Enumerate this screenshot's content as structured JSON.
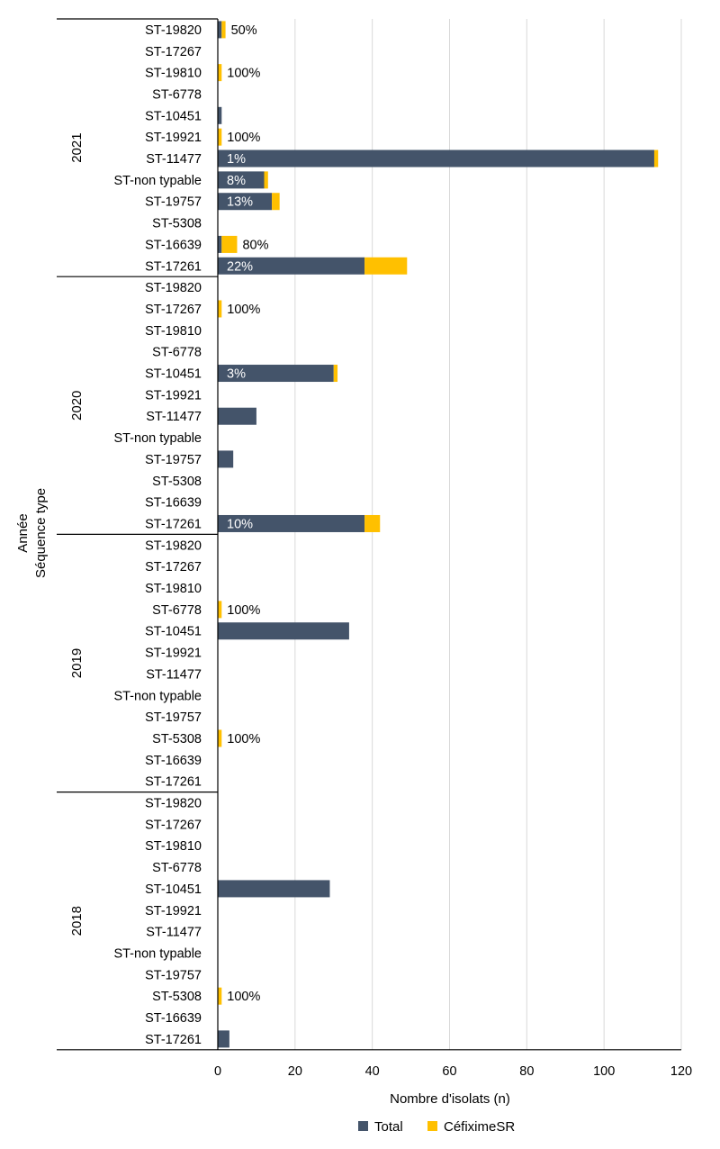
{
  "chart_data": {
    "type": "bar",
    "stacked": true,
    "orientation": "horizontal",
    "title": "",
    "xlabel": "Nombre d'isolats (n)",
    "ylabel": [
      "Année",
      "Séquence type"
    ],
    "xlim": [
      0,
      120
    ],
    "xticks": [
      "0",
      "20",
      "40",
      "60",
      "80",
      "100",
      "120"
    ],
    "grid": "vertical",
    "legend_position": "bottom",
    "colors": {
      "total": "#44546a",
      "cefixime": "#ffc000"
    },
    "series_names": [
      "Total",
      "CéfiximeSR"
    ],
    "groups": [
      {
        "year": "2021",
        "rows": [
          {
            "st": "ST-19820",
            "total": 1,
            "cef": 1,
            "label": "50%"
          },
          {
            "st": "ST-17267",
            "total": 0,
            "cef": 0,
            "label": ""
          },
          {
            "st": "ST-19810",
            "total": 0,
            "cef": 1,
            "label": "100%"
          },
          {
            "st": "ST-6778",
            "total": 0,
            "cef": 0,
            "label": ""
          },
          {
            "st": "ST-10451",
            "total": 1,
            "cef": 0,
            "label": ""
          },
          {
            "st": "ST-19921",
            "total": 0,
            "cef": 1,
            "label": "100%"
          },
          {
            "st": "ST-11477",
            "total": 113,
            "cef": 1,
            "label": "1%"
          },
          {
            "st": "ST-non typable",
            "total": 12,
            "cef": 1,
            "label": "8%"
          },
          {
            "st": "ST-19757",
            "total": 14,
            "cef": 2,
            "label": "13%"
          },
          {
            "st": "ST-5308",
            "total": 0,
            "cef": 0,
            "label": ""
          },
          {
            "st": "ST-16639",
            "total": 1,
            "cef": 4,
            "label": "80%"
          },
          {
            "st": "ST-17261",
            "total": 38,
            "cef": 11,
            "label": "22%"
          }
        ]
      },
      {
        "year": "2020",
        "rows": [
          {
            "st": "ST-19820",
            "total": 0,
            "cef": 0,
            "label": ""
          },
          {
            "st": "ST-17267",
            "total": 0,
            "cef": 1,
            "label": "100%"
          },
          {
            "st": "ST-19810",
            "total": 0,
            "cef": 0,
            "label": ""
          },
          {
            "st": "ST-6778",
            "total": 0,
            "cef": 0,
            "label": ""
          },
          {
            "st": "ST-10451",
            "total": 30,
            "cef": 1,
            "label": "3%"
          },
          {
            "st": "ST-19921",
            "total": 0,
            "cef": 0,
            "label": ""
          },
          {
            "st": "ST-11477",
            "total": 10,
            "cef": 0,
            "label": ""
          },
          {
            "st": "ST-non typable",
            "total": 0,
            "cef": 0,
            "label": ""
          },
          {
            "st": "ST-19757",
            "total": 4,
            "cef": 0,
            "label": ""
          },
          {
            "st": "ST-5308",
            "total": 0,
            "cef": 0,
            "label": ""
          },
          {
            "st": "ST-16639",
            "total": 0,
            "cef": 0,
            "label": ""
          },
          {
            "st": "ST-17261",
            "total": 38,
            "cef": 4,
            "label": "10%"
          }
        ]
      },
      {
        "year": "2019",
        "rows": [
          {
            "st": "ST-19820",
            "total": 0,
            "cef": 0,
            "label": ""
          },
          {
            "st": "ST-17267",
            "total": 0,
            "cef": 0,
            "label": ""
          },
          {
            "st": "ST-19810",
            "total": 0,
            "cef": 0,
            "label": ""
          },
          {
            "st": "ST-6778",
            "total": 0,
            "cef": 1,
            "label": "100%"
          },
          {
            "st": "ST-10451",
            "total": 34,
            "cef": 0,
            "label": ""
          },
          {
            "st": "ST-19921",
            "total": 0,
            "cef": 0,
            "label": ""
          },
          {
            "st": "ST-11477",
            "total": 0,
            "cef": 0,
            "label": ""
          },
          {
            "st": "ST-non typable",
            "total": 0,
            "cef": 0,
            "label": ""
          },
          {
            "st": "ST-19757",
            "total": 0,
            "cef": 0,
            "label": ""
          },
          {
            "st": "ST-5308",
            "total": 0,
            "cef": 1,
            "label": "100%"
          },
          {
            "st": "ST-16639",
            "total": 0,
            "cef": 0,
            "label": ""
          },
          {
            "st": "ST-17261",
            "total": 0,
            "cef": 0,
            "label": ""
          }
        ]
      },
      {
        "year": "2018",
        "rows": [
          {
            "st": "ST-19820",
            "total": 0,
            "cef": 0,
            "label": ""
          },
          {
            "st": "ST-17267",
            "total": 0,
            "cef": 0,
            "label": ""
          },
          {
            "st": "ST-19810",
            "total": 0,
            "cef": 0,
            "label": ""
          },
          {
            "st": "ST-6778",
            "total": 0,
            "cef": 0,
            "label": ""
          },
          {
            "st": "ST-10451",
            "total": 29,
            "cef": 0,
            "label": ""
          },
          {
            "st": "ST-19921",
            "total": 0,
            "cef": 0,
            "label": ""
          },
          {
            "st": "ST-11477",
            "total": 0,
            "cef": 0,
            "label": ""
          },
          {
            "st": "ST-non typable",
            "total": 0,
            "cef": 0,
            "label": ""
          },
          {
            "st": "ST-19757",
            "total": 0,
            "cef": 0,
            "label": ""
          },
          {
            "st": "ST-5308",
            "total": 0,
            "cef": 1,
            "label": "100%"
          },
          {
            "st": "ST-16639",
            "total": 0,
            "cef": 0,
            "label": ""
          },
          {
            "st": "ST-17261",
            "total": 3,
            "cef": 0,
            "label": ""
          }
        ]
      }
    ]
  }
}
